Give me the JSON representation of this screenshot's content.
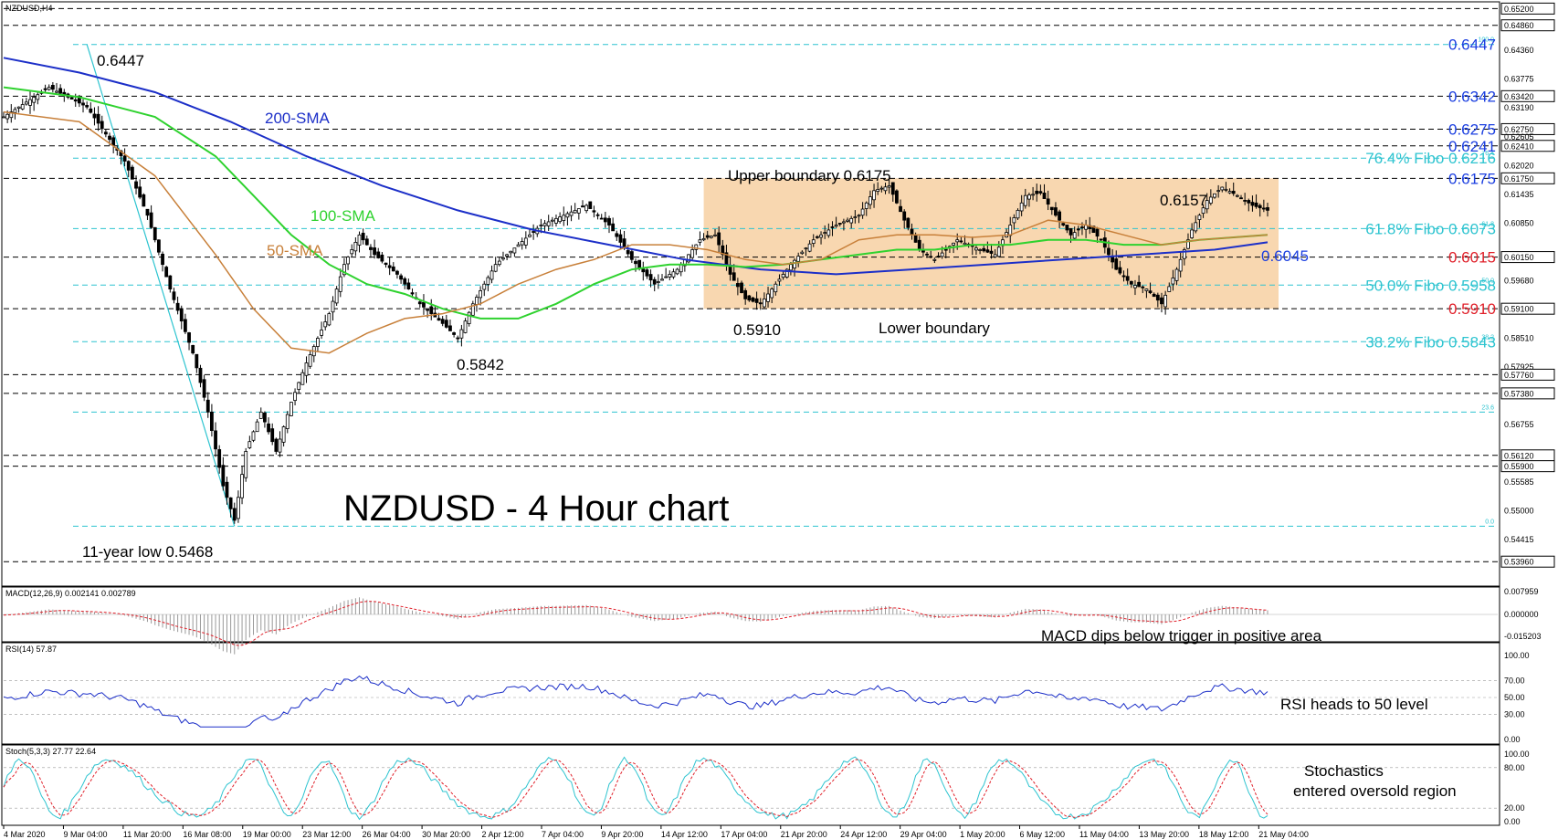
{
  "chart_data": {
    "type": "candlestick",
    "symbol_label": "NZDUSD,H4",
    "title": "NZDUSD - 4 Hour chart",
    "ylim": [
      0.535,
      0.653
    ],
    "x_ticks": [
      "4 Mar 2020",
      "9 Mar 04:00",
      "11 Mar 20:00",
      "16 Mar 08:00",
      "19 Mar 00:00",
      "23 Mar 12:00",
      "26 Mar 04:00",
      "30 Mar 20:00",
      "2 Apr 12:00",
      "7 Apr 04:00",
      "9 Apr 20:00",
      "14 Apr 12:00",
      "17 Apr 04:00",
      "21 Apr 20:00",
      "24 Apr 12:00",
      "29 Apr 04:00",
      "1 May 20:00",
      "6 May 12:00",
      "11 May 04:00",
      "13 May 20:00",
      "18 May 12:00",
      "21 May 04:00"
    ],
    "price_axis_labels": [
      0.652,
      0.6486,
      0.6436,
      0.63775,
      0.6342,
      0.6319,
      0.6275,
      0.62605,
      0.6241,
      0.6202,
      0.6175,
      0.61435,
      0.6085,
      0.6015,
      0.5968,
      0.591,
      0.5851,
      0.57925,
      0.5776,
      0.5738,
      0.56755,
      0.5612,
      0.559,
      0.55585,
      0.55,
      0.54415,
      0.5396
    ],
    "key_levels": [
      {
        "label": "0.6447",
        "value": 0.6447,
        "color": "#1a3ee0"
      },
      {
        "label": "0.6342",
        "value": 0.6342,
        "color": "#1a3ee0"
      },
      {
        "label": "0.6275",
        "value": 0.6275,
        "color": "#1a3ee0"
      },
      {
        "label": "0.6241",
        "value": 0.6241,
        "color": "#1a3ee0"
      },
      {
        "label": "76.4% Fibo 0.6216",
        "value": 0.6216,
        "color": "#2ec4d0"
      },
      {
        "label": "0.6175",
        "value": 0.6175,
        "color": "#1a3ee0"
      },
      {
        "label": "61.8% Fibo 0.6073",
        "value": 0.6073,
        "color": "#2ec4d0"
      },
      {
        "label": "0.6015",
        "value": 0.6015,
        "color": "#e0202a"
      },
      {
        "label": "50.0% Fibo 0.5958",
        "value": 0.5958,
        "color": "#2ec4d0"
      },
      {
        "label": "0.5910",
        "value": 0.591,
        "color": "#e0202a"
      },
      {
        "label": "38.2% Fibo 0.5843",
        "value": 0.5843,
        "color": "#2ec4d0"
      }
    ],
    "dashed_black_levels": [
      0.652,
      0.6486,
      0.6342,
      0.6275,
      0.6241,
      0.6175,
      0.6015,
      0.591,
      0.5776,
      0.5738,
      0.5612,
      0.559,
      0.5396
    ],
    "fibo_levels": [
      {
        "pct": "100.0",
        "value": 0.6447
      },
      {
        "pct": "76.4",
        "value": 0.6216
      },
      {
        "pct": "61.8",
        "value": 0.6073
      },
      {
        "pct": "50.0",
        "value": 0.5958
      },
      {
        "pct": "38.2",
        "value": 0.5843
      },
      {
        "pct": "23.6",
        "value": 0.57
      },
      {
        "pct": "0.0",
        "value": 0.5468
      }
    ],
    "range_box": {
      "top": 0.6175,
      "bottom": 0.591,
      "color": "#f8d7b0"
    },
    "annotations": {
      "high": "0.6447",
      "low": "11-year low 0.5468",
      "sma200": "200-SMA",
      "sma100": "100-SMA",
      "sma50": "50-SMA",
      "low_5842": "0.5842",
      "low_5910": "0.5910",
      "upper": "Upper boundary 0.6175",
      "lower": "Lower boundary",
      "high_6157": "0.6157",
      "sma_6045": "0.6045"
    },
    "sma_colors": {
      "sma50": "#c8803a",
      "sma100": "#2fd22f",
      "sma200": "#1c2fc8"
    },
    "price_path": [
      [
        0,
        0.63
      ],
      [
        12,
        0.636
      ],
      [
        22,
        0.632
      ],
      [
        32,
        0.621
      ],
      [
        38,
        0.61
      ],
      [
        44,
        0.595
      ],
      [
        50,
        0.582
      ],
      [
        54,
        0.57
      ],
      [
        58,
        0.555
      ],
      [
        61,
        0.548
      ],
      [
        64,
        0.562
      ],
      [
        68,
        0.57
      ],
      [
        72,
        0.562
      ],
      [
        76,
        0.572
      ],
      [
        80,
        0.58
      ],
      [
        86,
        0.59
      ],
      [
        90,
        0.6
      ],
      [
        94,
        0.606
      ],
      [
        98,
        0.602
      ],
      [
        104,
        0.598
      ],
      [
        110,
        0.592
      ],
      [
        116,
        0.588
      ],
      [
        120,
        0.585
      ],
      [
        124,
        0.592
      ],
      [
        130,
        0.6
      ],
      [
        136,
        0.604
      ],
      [
        142,
        0.608
      ],
      [
        148,
        0.61
      ],
      [
        154,
        0.612
      ],
      [
        160,
        0.608
      ],
      [
        166,
        0.601
      ],
      [
        172,
        0.596
      ],
      [
        178,
        0.599
      ],
      [
        184,
        0.605
      ],
      [
        188,
        0.606
      ],
      [
        192,
        0.598
      ],
      [
        196,
        0.593
      ],
      [
        200,
        0.592
      ],
      [
        204,
        0.596
      ],
      [
        208,
        0.6
      ],
      [
        214,
        0.605
      ],
      [
        220,
        0.608
      ],
      [
        226,
        0.61
      ],
      [
        230,
        0.615
      ],
      [
        234,
        0.616
      ],
      [
        238,
        0.609
      ],
      [
        242,
        0.603
      ],
      [
        246,
        0.601
      ],
      [
        252,
        0.605
      ],
      [
        258,
        0.603
      ],
      [
        262,
        0.602
      ],
      [
        266,
        0.608
      ],
      [
        270,
        0.614
      ],
      [
        274,
        0.6145
      ],
      [
        278,
        0.61
      ],
      [
        282,
        0.606
      ],
      [
        286,
        0.608
      ],
      [
        290,
        0.605
      ],
      [
        294,
        0.599
      ],
      [
        298,
        0.596
      ],
      [
        302,
        0.595
      ],
      [
        306,
        0.592
      ],
      [
        310,
        0.599
      ],
      [
        314,
        0.607
      ],
      [
        318,
        0.613
      ],
      [
        322,
        0.6157
      ],
      [
        326,
        0.614
      ],
      [
        330,
        0.612
      ],
      [
        334,
        0.611
      ]
    ],
    "sma50_path": [
      [
        0,
        0.631
      ],
      [
        20,
        0.629
      ],
      [
        40,
        0.618
      ],
      [
        56,
        0.602
      ],
      [
        66,
        0.591
      ],
      [
        76,
        0.583
      ],
      [
        86,
        0.582
      ],
      [
        96,
        0.586
      ],
      [
        106,
        0.589
      ],
      [
        116,
        0.59
      ],
      [
        126,
        0.592
      ],
      [
        136,
        0.596
      ],
      [
        146,
        0.599
      ],
      [
        156,
        0.601
      ],
      [
        166,
        0.604
      ],
      [
        176,
        0.604
      ],
      [
        186,
        0.603
      ],
      [
        196,
        0.601
      ],
      [
        206,
        0.6
      ],
      [
        216,
        0.601
      ],
      [
        226,
        0.605
      ],
      [
        236,
        0.606
      ],
      [
        246,
        0.606
      ],
      [
        256,
        0.6055
      ],
      [
        266,
        0.606
      ],
      [
        276,
        0.609
      ],
      [
        286,
        0.608
      ],
      [
        296,
        0.606
      ],
      [
        306,
        0.604
      ],
      [
        316,
        0.605
      ],
      [
        334,
        0.606
      ]
    ],
    "sma100_path": [
      [
        0,
        0.636
      ],
      [
        20,
        0.634
      ],
      [
        40,
        0.63
      ],
      [
        56,
        0.622
      ],
      [
        66,
        0.614
      ],
      [
        76,
        0.606
      ],
      [
        86,
        0.6
      ],
      [
        96,
        0.596
      ],
      [
        106,
        0.594
      ],
      [
        116,
        0.591
      ],
      [
        126,
        0.589
      ],
      [
        136,
        0.589
      ],
      [
        146,
        0.592
      ],
      [
        156,
        0.596
      ],
      [
        166,
        0.599
      ],
      [
        176,
        0.6
      ],
      [
        186,
        0.6
      ],
      [
        196,
        0.5995
      ],
      [
        206,
        0.6
      ],
      [
        216,
        0.601
      ],
      [
        226,
        0.602
      ],
      [
        236,
        0.603
      ],
      [
        246,
        0.603
      ],
      [
        256,
        0.604
      ],
      [
        266,
        0.604
      ],
      [
        276,
        0.605
      ],
      [
        286,
        0.605
      ],
      [
        296,
        0.604
      ],
      [
        306,
        0.604
      ],
      [
        316,
        0.605
      ],
      [
        334,
        0.606
      ]
    ],
    "sma200_path": [
      [
        0,
        0.642
      ],
      [
        20,
        0.639
      ],
      [
        40,
        0.635
      ],
      [
        60,
        0.629
      ],
      [
        80,
        0.622
      ],
      [
        100,
        0.616
      ],
      [
        120,
        0.611
      ],
      [
        140,
        0.607
      ],
      [
        160,
        0.604
      ],
      [
        180,
        0.601
      ],
      [
        200,
        0.599
      ],
      [
        220,
        0.598
      ],
      [
        240,
        0.599
      ],
      [
        260,
        0.6
      ],
      [
        280,
        0.601
      ],
      [
        300,
        0.602
      ],
      [
        320,
        0.603
      ],
      [
        334,
        0.6045
      ]
    ],
    "macd": {
      "label": "MACD(12,26,9) 0.002141 0.002789",
      "axis": [
        "0.007959",
        "0.000000",
        "-0.015203"
      ],
      "note": "MACD dips below trigger in positive area"
    },
    "rsi": {
      "label": "RSI(14) 57.87",
      "axis": [
        "100.00",
        "70.00",
        "50.00",
        "30.00",
        "0.00"
      ],
      "note": "RSI heads to 50 level"
    },
    "stoch": {
      "label": "Stoch(5,3,3) 27.77 22.64",
      "axis": [
        "100.00",
        "80.00",
        "20.00",
        "0.00"
      ],
      "note_line1": "Stochastics",
      "note_line2": "entered oversold region"
    }
  }
}
